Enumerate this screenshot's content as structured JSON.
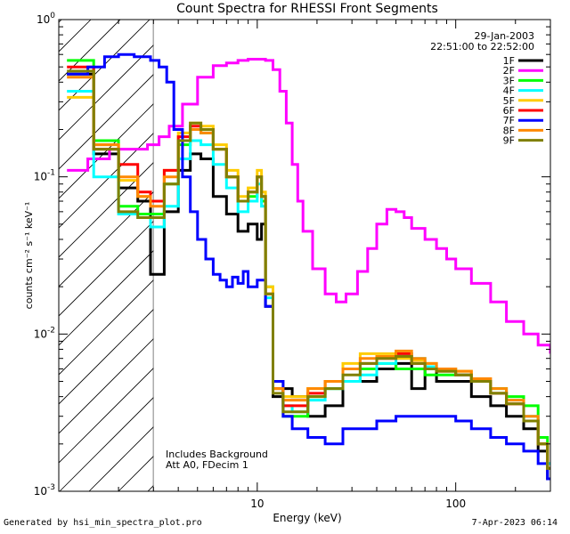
{
  "chart_data": {
    "type": "line",
    "title": "Count Spectra for RHESSI Front Segments",
    "xlabel": "Energy (keV)",
    "ylabel": "counts cm⁻² s⁻¹ keV⁻¹",
    "xscale": "log",
    "yscale": "log",
    "xlim": [
      1,
      300
    ],
    "ylim": [
      0.001,
      1
    ],
    "x_tick_labels": [
      {
        "value": 10,
        "label": "10"
      },
      {
        "value": 100,
        "label": "100"
      }
    ],
    "y_tick_labels": [
      {
        "value": 1,
        "base": "10",
        "exp": "0"
      },
      {
        "value": 0.1,
        "base": "10",
        "exp": "-1"
      },
      {
        "value": 0.01,
        "base": "10",
        "exp": "-2"
      },
      {
        "value": 0.001,
        "base": "10",
        "exp": "-3"
      }
    ],
    "attenuator_region_max_keV": 3,
    "date_text": "29-Jan-2003",
    "time_text": "22:51:00 to 22:52:00",
    "annotations": [
      "Includes Background",
      "Att A0, FDecim 1"
    ],
    "series": [
      {
        "name": "1F",
        "color": "#000000",
        "x": [
          1.1,
          1.5,
          2.0,
          2.5,
          2.9,
          3.4,
          4.0,
          4.6,
          5.2,
          6.0,
          7.0,
          8.0,
          9.0,
          10.0,
          10.5,
          11.0,
          12.0,
          13.5,
          15,
          18,
          22,
          27,
          33,
          40,
          50,
          60,
          70,
          80,
          100,
          120,
          150,
          180,
          220,
          260,
          290
        ],
        "y": [
          0.45,
          0.14,
          0.085,
          0.07,
          0.024,
          0.06,
          0.11,
          0.14,
          0.13,
          0.075,
          0.058,
          0.045,
          0.05,
          0.04,
          0.05,
          0.015,
          0.004,
          0.0045,
          0.004,
          0.003,
          0.0035,
          0.005,
          0.005,
          0.006,
          0.0065,
          0.0045,
          0.006,
          0.005,
          0.005,
          0.004,
          0.0035,
          0.003,
          0.0025,
          0.0018,
          0.0012
        ]
      },
      {
        "name": "2F",
        "color": "#ff00ff",
        "x": [
          1.1,
          1.4,
          1.8,
          2.2,
          2.8,
          3.2,
          3.6,
          4.2,
          5.0,
          6.0,
          7.0,
          8.0,
          9.0,
          10.0,
          11.0,
          12.0,
          13.0,
          14.0,
          15.0,
          16.0,
          17.0,
          19,
          22,
          25,
          28,
          32,
          36,
          40,
          45,
          50,
          55,
          60,
          70,
          80,
          90,
          100,
          120,
          150,
          180,
          220,
          260,
          300
        ],
        "y": [
          0.11,
          0.13,
          0.15,
          0.15,
          0.16,
          0.18,
          0.21,
          0.29,
          0.43,
          0.51,
          0.53,
          0.55,
          0.56,
          0.56,
          0.55,
          0.48,
          0.35,
          0.22,
          0.12,
          0.07,
          0.045,
          0.026,
          0.018,
          0.016,
          0.018,
          0.025,
          0.035,
          0.05,
          0.062,
          0.06,
          0.055,
          0.047,
          0.04,
          0.035,
          0.03,
          0.026,
          0.021,
          0.016,
          0.012,
          0.01,
          0.0085,
          0.0075
        ]
      },
      {
        "name": "3F",
        "color": "#00ff00",
        "x": [
          1.1,
          1.5,
          2.0,
          2.5,
          2.9,
          3.4,
          4.0,
          4.6,
          5.2,
          6.0,
          7.0,
          8.0,
          9.0,
          10.0,
          10.5,
          11.0,
          12.0,
          13.5,
          15,
          18,
          22,
          27,
          33,
          40,
          50,
          60,
          70,
          80,
          100,
          120,
          150,
          180,
          220,
          260,
          290
        ],
        "y": [
          0.55,
          0.17,
          0.065,
          0.058,
          0.058,
          0.09,
          0.16,
          0.2,
          0.19,
          0.15,
          0.1,
          0.07,
          0.075,
          0.1,
          0.07,
          0.02,
          0.0045,
          0.003,
          0.003,
          0.004,
          0.0045,
          0.005,
          0.006,
          0.0065,
          0.006,
          0.006,
          0.0055,
          0.0055,
          0.0055,
          0.005,
          0.0045,
          0.004,
          0.0035,
          0.0022,
          0.0015
        ]
      },
      {
        "name": "4F",
        "color": "#00ffff",
        "x": [
          1.1,
          1.5,
          2.0,
          2.5,
          2.9,
          3.4,
          4.0,
          4.6,
          5.2,
          6.0,
          7.0,
          8.0,
          9.0,
          10.0,
          10.5,
          11.0,
          12.0,
          13.5,
          15,
          18,
          22,
          27,
          33,
          40,
          50,
          60,
          70,
          80,
          100,
          120,
          150,
          180,
          220,
          260,
          290
        ],
        "y": [
          0.35,
          0.1,
          0.058,
          0.055,
          0.048,
          0.065,
          0.13,
          0.17,
          0.16,
          0.12,
          0.085,
          0.06,
          0.07,
          0.09,
          0.065,
          0.017,
          0.005,
          0.0035,
          0.0032,
          0.0038,
          0.0045,
          0.005,
          0.0055,
          0.0065,
          0.0075,
          0.007,
          0.0062,
          0.006,
          0.0055,
          0.005,
          0.0042,
          0.0038,
          0.003,
          0.002,
          0.0015
        ]
      },
      {
        "name": "5F",
        "color": "#ffcc00",
        "x": [
          1.1,
          1.5,
          2.0,
          2.5,
          2.9,
          3.4,
          4.0,
          4.6,
          5.2,
          6.0,
          7.0,
          8.0,
          9.0,
          10.0,
          10.5,
          11.0,
          12.0,
          13.5,
          15,
          18,
          22,
          27,
          33,
          40,
          50,
          60,
          70,
          80,
          100,
          120,
          150,
          180,
          220,
          260,
          290
        ],
        "y": [
          0.32,
          0.16,
          0.095,
          0.075,
          0.07,
          0.11,
          0.19,
          0.22,
          0.21,
          0.16,
          0.11,
          0.075,
          0.085,
          0.11,
          0.08,
          0.02,
          0.005,
          0.004,
          0.004,
          0.0045,
          0.005,
          0.0065,
          0.0075,
          0.0075,
          0.007,
          0.0068,
          0.0065,
          0.006,
          0.0058,
          0.005,
          0.0042,
          0.0036,
          0.0028,
          0.002,
          0.0014
        ]
      },
      {
        "name": "6F",
        "color": "#ff0000",
        "x": [
          1.1,
          1.5,
          2.0,
          2.5,
          2.9,
          3.4,
          4.0,
          4.6,
          5.2,
          6.0,
          7.0,
          8.0,
          9.0,
          10.0,
          10.5,
          11.0,
          12.0,
          13.5,
          15,
          18,
          22,
          27,
          33,
          40,
          50,
          60,
          70,
          80,
          100,
          120,
          150,
          180,
          220,
          260,
          290
        ],
        "y": [
          0.5,
          0.15,
          0.12,
          0.08,
          0.07,
          0.11,
          0.18,
          0.21,
          0.2,
          0.15,
          0.1,
          0.07,
          0.08,
          0.1,
          0.075,
          0.018,
          0.0045,
          0.0035,
          0.0035,
          0.0042,
          0.005,
          0.006,
          0.0065,
          0.007,
          0.0075,
          0.0065,
          0.006,
          0.0058,
          0.0055,
          0.005,
          0.0042,
          0.0036,
          0.0028,
          0.002,
          0.0014
        ]
      },
      {
        "name": "7F",
        "color": "#0000ff",
        "x": [
          1.1,
          1.4,
          1.7,
          2.0,
          2.4,
          2.9,
          3.2,
          3.5,
          3.8,
          4.2,
          4.6,
          5.0,
          5.5,
          6.0,
          6.5,
          7.0,
          7.5,
          8.0,
          8.5,
          9.0,
          10.0,
          11.0,
          12.0,
          13.5,
          15,
          18,
          22,
          27,
          33,
          40,
          50,
          60,
          70,
          80,
          100,
          120,
          150,
          180,
          220,
          260,
          290
        ],
        "y": [
          0.45,
          0.5,
          0.58,
          0.6,
          0.58,
          0.55,
          0.5,
          0.4,
          0.2,
          0.1,
          0.06,
          0.04,
          0.03,
          0.024,
          0.022,
          0.02,
          0.023,
          0.021,
          0.025,
          0.02,
          0.022,
          0.015,
          0.005,
          0.003,
          0.0025,
          0.0022,
          0.002,
          0.0025,
          0.0025,
          0.0028,
          0.003,
          0.003,
          0.003,
          0.003,
          0.0028,
          0.0025,
          0.0022,
          0.002,
          0.0018,
          0.0015,
          0.0012
        ]
      },
      {
        "name": "8F",
        "color": "#ff8800",
        "x": [
          1.1,
          1.5,
          2.0,
          2.5,
          2.9,
          3.4,
          4.0,
          4.6,
          5.2,
          6.0,
          7.0,
          8.0,
          9.0,
          10.0,
          10.5,
          11.0,
          12.0,
          13.5,
          15,
          18,
          22,
          27,
          33,
          40,
          50,
          60,
          70,
          80,
          100,
          120,
          150,
          180,
          220,
          260,
          290
        ],
        "y": [
          0.43,
          0.16,
          0.1,
          0.075,
          0.065,
          0.1,
          0.17,
          0.2,
          0.19,
          0.15,
          0.1,
          0.07,
          0.08,
          0.1,
          0.075,
          0.018,
          0.0045,
          0.0038,
          0.0038,
          0.0045,
          0.005,
          0.006,
          0.007,
          0.0072,
          0.0078,
          0.007,
          0.0065,
          0.006,
          0.0058,
          0.0052,
          0.0045,
          0.0038,
          0.003,
          0.002,
          0.0014
        ]
      },
      {
        "name": "9F",
        "color": "#808000",
        "x": [
          1.1,
          1.5,
          2.0,
          2.5,
          2.9,
          3.4,
          4.0,
          4.6,
          5.2,
          6.0,
          7.0,
          8.0,
          9.0,
          10.0,
          10.5,
          11.0,
          12.0,
          13.5,
          15,
          18,
          22,
          27,
          33,
          40,
          50,
          60,
          70,
          80,
          100,
          120,
          150,
          180,
          220,
          260,
          290
        ],
        "y": [
          0.47,
          0.15,
          0.06,
          0.055,
          0.055,
          0.09,
          0.17,
          0.22,
          0.2,
          0.15,
          0.1,
          0.07,
          0.08,
          0.1,
          0.075,
          0.018,
          0.0042,
          0.0032,
          0.0032,
          0.004,
          0.0045,
          0.0055,
          0.0065,
          0.007,
          0.0072,
          0.0065,
          0.006,
          0.0058,
          0.0055,
          0.005,
          0.0042,
          0.0036,
          0.0028,
          0.002,
          0.0014
        ]
      }
    ]
  },
  "footer": {
    "left": "Generated by hsi_min_spectra_plot.pro",
    "right": "7-Apr-2023 06:14"
  }
}
